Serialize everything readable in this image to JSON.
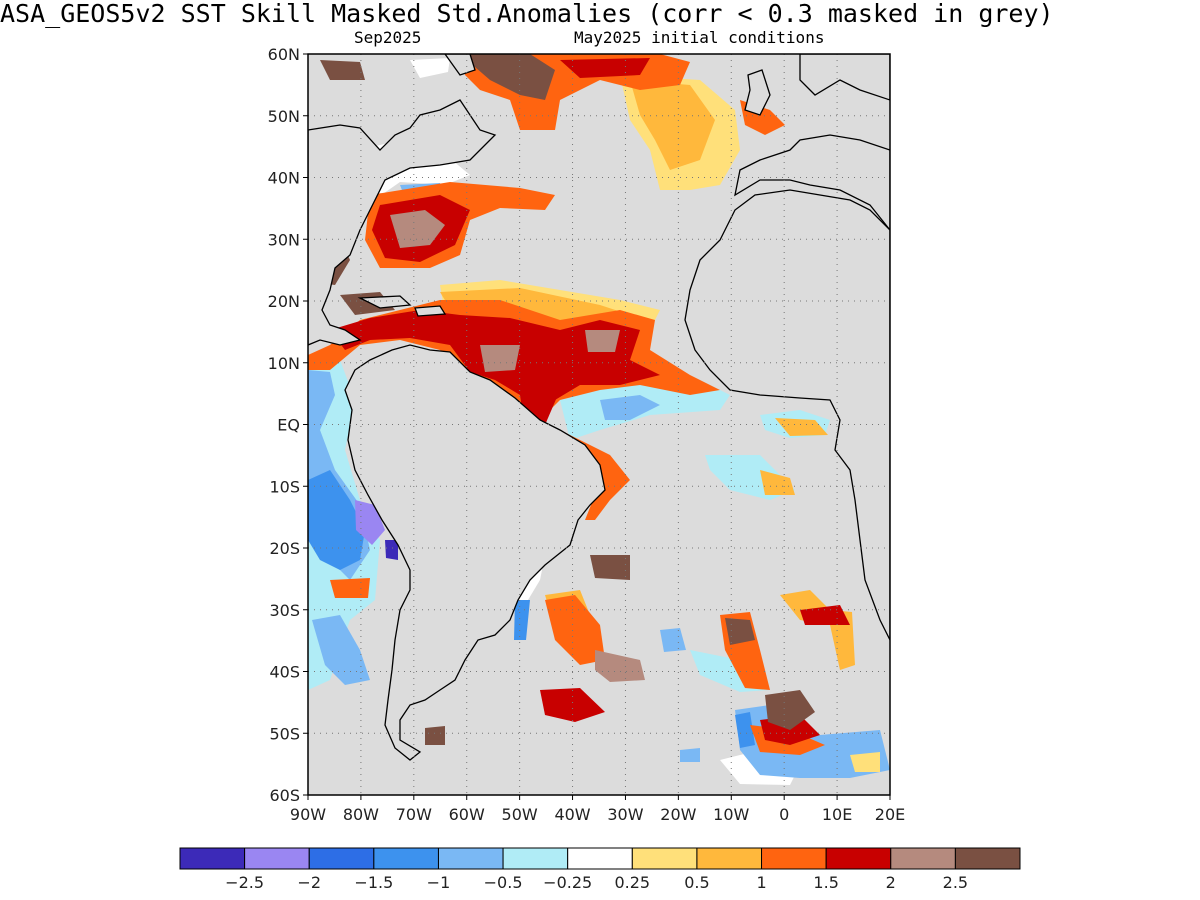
{
  "title": "ASA_GEOS5v2   SST Skill Masked Std.Anomalies (corr < 0.3 masked in grey)",
  "subtitle_left": "Sep2025",
  "subtitle_right": "May2025 initial conditions",
  "axes": {
    "lat_labels": [
      "60N",
      "50N",
      "40N",
      "30N",
      "20N",
      "10N",
      "EQ",
      "10S",
      "20S",
      "30S",
      "40S",
      "50S",
      "60S"
    ],
    "lon_labels": [
      "90W",
      "80W",
      "70W",
      "60W",
      "50W",
      "40W",
      "30W",
      "20W",
      "10W",
      "0",
      "10E",
      "20E"
    ],
    "lat_range": [
      -60,
      60
    ],
    "lon_range": [
      -90,
      20
    ],
    "grid": "dotted"
  },
  "colorbar": {
    "colors": [
      "#3c2ab8",
      "#9a86f2",
      "#2d6ee6",
      "#3d92ee",
      "#7ab8f4",
      "#b0ecf6",
      "#ffffff",
      "#ffe07a",
      "#ffb83c",
      "#ff6410",
      "#c80000",
      "#b58a7e",
      "#7a5042"
    ],
    "labels": [
      "−2.5",
      "−2",
      "−1.5",
      "−1",
      "−0.5",
      "−0.25",
      "0.25",
      "0.5",
      "1",
      "1.5",
      "2",
      "2.5"
    ]
  },
  "mask_color": "#dcdcdc",
  "land_color": "#dcdcdc",
  "coastline_color": "#000000"
}
